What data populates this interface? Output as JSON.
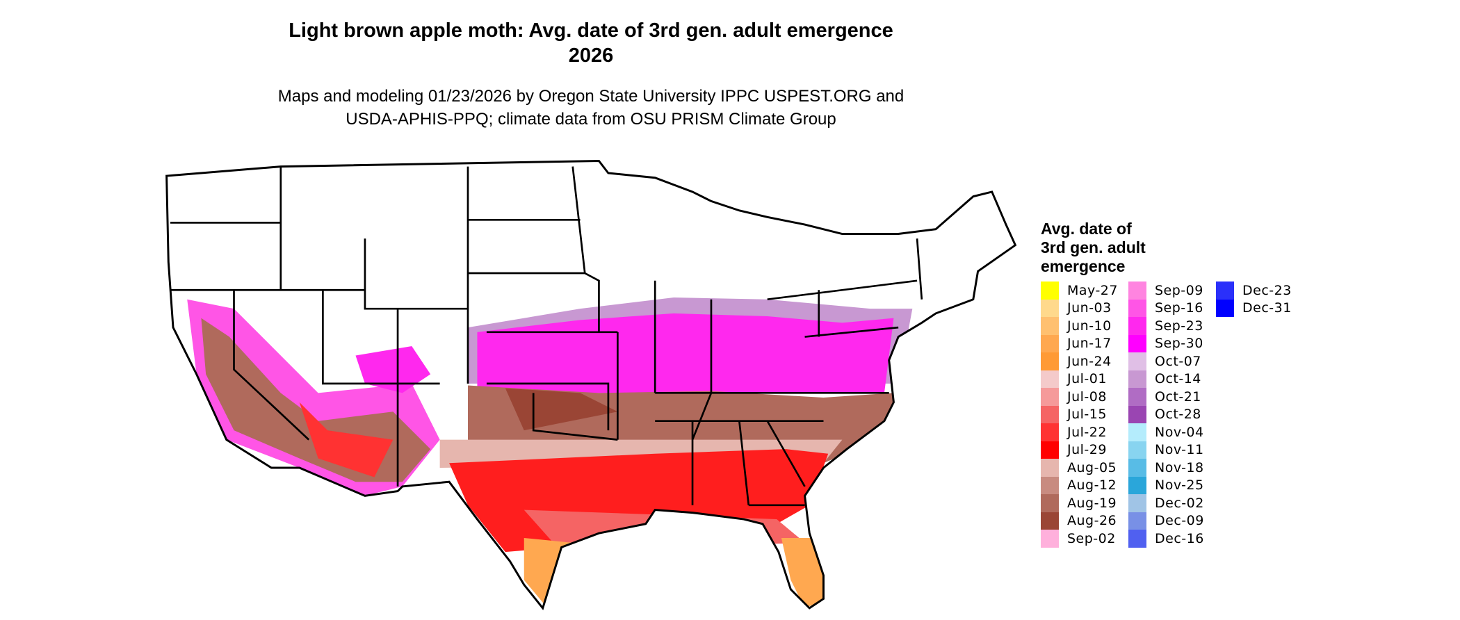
{
  "title": {
    "line1": "Light brown apple moth: Avg. date of 3rd gen. adult emergence",
    "line2": "2026"
  },
  "subtitle": {
    "line1": "Maps and modeling 01/23/2026 by Oregon State University IPPC USPEST.ORG and",
    "line2": "USDA-APHIS-PPQ; climate data from OSU PRISM Climate Group"
  },
  "legend": {
    "title": [
      "Avg. date of",
      "3rd gen. adult",
      "emergence"
    ],
    "columns": [
      [
        {
          "label": "May-27",
          "color": "#ffff00"
        },
        {
          "label": "Jun-03",
          "color": "#ffd98c"
        },
        {
          "label": "Jun-10",
          "color": "#ffc070"
        },
        {
          "label": "Jun-17",
          "color": "#ffa850"
        },
        {
          "label": "Jun-24",
          "color": "#ff9a35"
        },
        {
          "label": "Jul-01",
          "color": "#f4caca"
        },
        {
          "label": "Jul-08",
          "color": "#f59a9a"
        },
        {
          "label": "Jul-15",
          "color": "#f56464"
        },
        {
          "label": "Jul-22",
          "color": "#ff3232"
        },
        {
          "label": "Jul-29",
          "color": "#ff0000"
        },
        {
          "label": "Aug-05",
          "color": "#e6b6ae"
        },
        {
          "label": "Aug-12",
          "color": "#c88b80"
        },
        {
          "label": "Aug-19",
          "color": "#b06a5c"
        },
        {
          "label": "Aug-26",
          "color": "#9a4535"
        },
        {
          "label": "Sep-02",
          "color": "#ffb0dc"
        }
      ],
      [
        {
          "label": "Sep-09",
          "color": "#ff84e0"
        },
        {
          "label": "Sep-16",
          "color": "#ff55e6"
        },
        {
          "label": "Sep-23",
          "color": "#ff28ee"
        },
        {
          "label": "Sep-30",
          "color": "#ff00ff"
        },
        {
          "label": "Oct-07",
          "color": "#e0bfe6"
        },
        {
          "label": "Oct-14",
          "color": "#c898d2"
        },
        {
          "label": "Oct-21",
          "color": "#b06cc4"
        },
        {
          "label": "Oct-28",
          "color": "#9a45b2"
        },
        {
          "label": "Nov-04",
          "color": "#b4ecfc"
        },
        {
          "label": "Nov-11",
          "color": "#88d4f0"
        },
        {
          "label": "Nov-18",
          "color": "#58bce6"
        },
        {
          "label": "Nov-25",
          "color": "#2aa6da"
        },
        {
          "label": "Dec-02",
          "color": "#a0c4e6"
        },
        {
          "label": "Dec-09",
          "color": "#7890e6"
        },
        {
          "label": "Dec-16",
          "color": "#5060f0"
        }
      ],
      [
        {
          "label": "Dec-23",
          "color": "#2a30fa"
        },
        {
          "label": "Dec-31",
          "color": "#0000ff"
        }
      ]
    ]
  }
}
